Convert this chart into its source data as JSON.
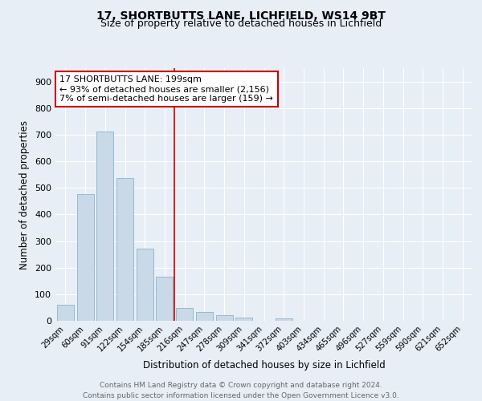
{
  "title1": "17, SHORTBUTTS LANE, LICHFIELD, WS14 9BT",
  "title2": "Size of property relative to detached houses in Lichfield",
  "xlabel": "Distribution of detached houses by size in Lichfield",
  "ylabel": "Number of detached properties",
  "categories": [
    "29sqm",
    "60sqm",
    "91sqm",
    "122sqm",
    "154sqm",
    "185sqm",
    "216sqm",
    "247sqm",
    "278sqm",
    "309sqm",
    "341sqm",
    "372sqm",
    "403sqm",
    "434sqm",
    "465sqm",
    "496sqm",
    "527sqm",
    "559sqm",
    "590sqm",
    "621sqm",
    "652sqm"
  ],
  "values": [
    60,
    478,
    712,
    538,
    272,
    165,
    47,
    32,
    20,
    13,
    0,
    8,
    0,
    0,
    0,
    0,
    0,
    0,
    0,
    0,
    0
  ],
  "bar_color": "#c9d9e8",
  "bar_edge_color": "#8ab4cc",
  "highlight_line_color": "#cc0000",
  "annotation_text": "17 SHORTBUTTS LANE: 199sqm\n← 93% of detached houses are smaller (2,156)\n7% of semi-detached houses are larger (159) →",
  "annotation_box_color": "#ffffff",
  "annotation_box_edge_color": "#cc0000",
  "ylim": [
    0,
    950
  ],
  "yticks": [
    0,
    100,
    200,
    300,
    400,
    500,
    600,
    700,
    800,
    900
  ],
  "background_color": "#e8eef5",
  "plot_bg_color": "#e8eef5",
  "footer_text": "Contains HM Land Registry data © Crown copyright and database right 2024.\nContains public sector information licensed under the Open Government Licence v3.0.",
  "title1_fontsize": 10,
  "title2_fontsize": 9,
  "xlabel_fontsize": 8.5,
  "ylabel_fontsize": 8.5,
  "annotation_fontsize": 8,
  "footer_fontsize": 6.5
}
